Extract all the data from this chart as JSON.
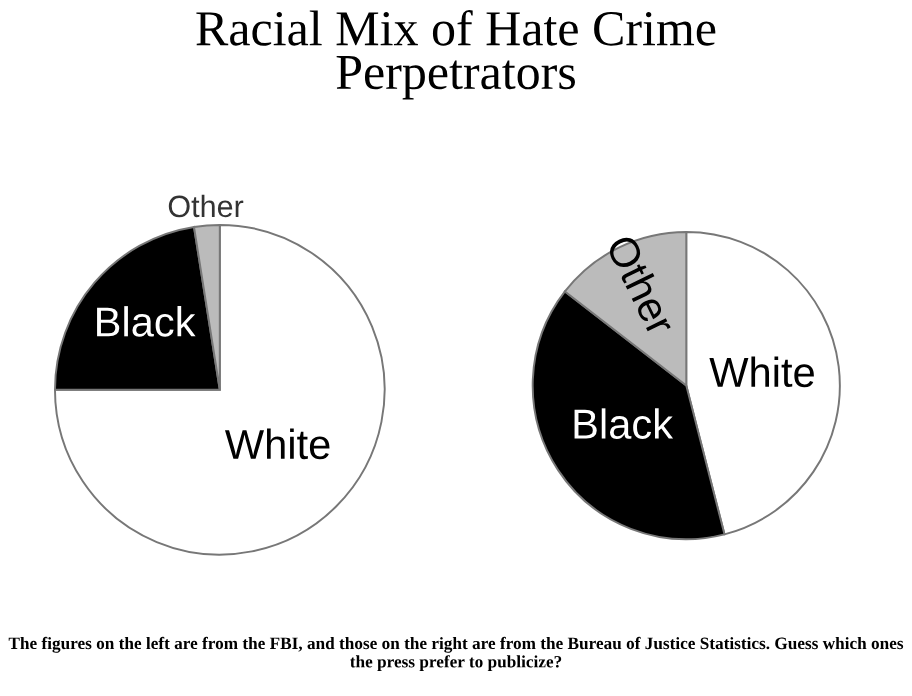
{
  "chart_data": [
    {
      "type": "pie",
      "title": "Racial Mix of Hate Crime\nPerpetrators",
      "categories": [
        "White",
        "Black",
        "Other"
      ],
      "values": [
        75,
        22.5,
        2.5
      ],
      "colors": [
        "#ffffff",
        "#000000",
        "#bbbbbb"
      ]
    },
    {
      "type": "pie",
      "categories": [
        "White",
        "Black",
        "Other"
      ],
      "values": [
        46,
        39.5,
        14.5
      ],
      "colors": [
        "#ffffff",
        "#000000",
        "#bbbbbb"
      ],
      "annotations": [
        "The figures on the left are from the FBI, and those on the right are from the Bureau of Justice Statistics. Guess which ones the press prefer to publicize?"
      ]
    }
  ]
}
